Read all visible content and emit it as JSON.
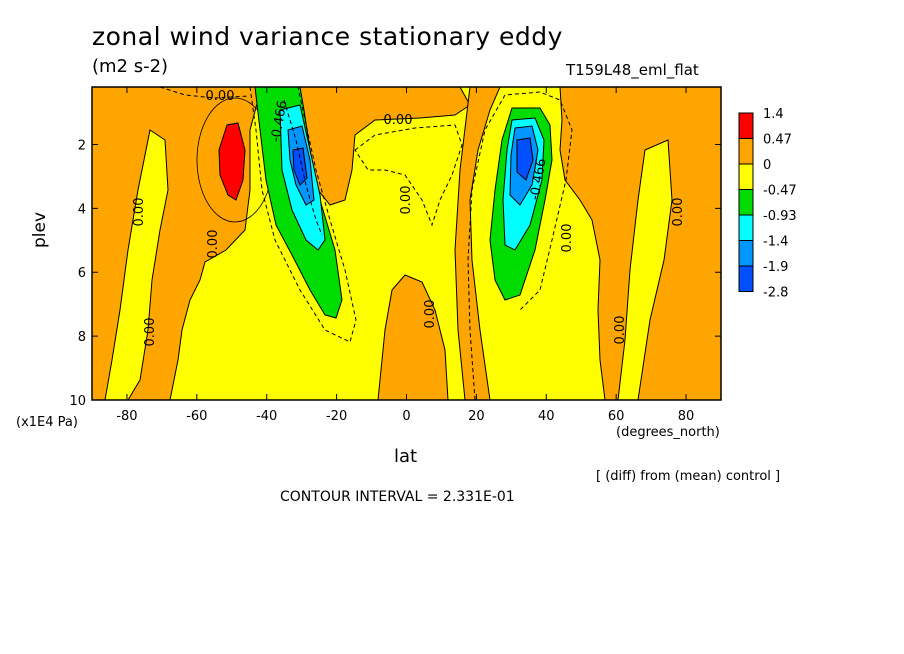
{
  "chart_data": {
    "type": "heatmap",
    "title": "zonal wind variance stationary eddy",
    "units": "(m2 s-2)",
    "experiment": "T159L48_eml_flat",
    "xlabel": "lat",
    "x_unit": "(degrees_north)",
    "ylabel": "plev",
    "y_unit": "(x1E4 Pa)",
    "xlim": [
      -90,
      90
    ],
    "ylim": [
      10,
      0.2
    ],
    "x_ticks": [
      -80,
      -60,
      -40,
      -20,
      0,
      20,
      40,
      60,
      80
    ],
    "y_ticks": [
      2,
      4,
      6,
      8,
      10
    ],
    "contour_interval_text": "CONTOUR INTERVAL = 2.331E-01",
    "note": "[ (diff) from (mean) control ]",
    "colorbar": {
      "levels": [
        "1.4",
        "0.47",
        "0",
        "-0.47",
        "-0.93",
        "-1.4",
        "-1.9",
        "-2.8"
      ],
      "colors": [
        "#ff0000",
        "#ffa500",
        "#ffff00",
        "#00dc00",
        "#00ffff",
        "#0096ff",
        "#0050ff"
      ]
    },
    "contour_labels": [
      "0.00",
      "0.00",
      "0.00",
      "0.00",
      "0.00",
      "0.00",
      "0.00",
      "0.00",
      "0.00",
      "0.00",
      "-0.466",
      "-0.466"
    ],
    "features": [
      {
        "kind": "max",
        "lat": -50,
        "plev": 2.2,
        "value": 1.4
      },
      {
        "kind": "min",
        "lat": -30,
        "plev": 2.8,
        "value": -2.8
      },
      {
        "kind": "min",
        "lat": 32,
        "plev": 2.5,
        "value": -2.8
      }
    ]
  }
}
